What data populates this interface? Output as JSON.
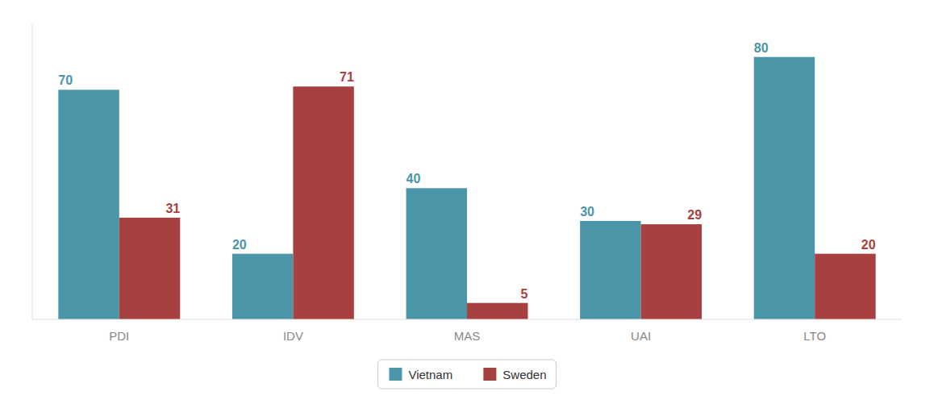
{
  "chart_data": {
    "type": "bar",
    "categories": [
      "PDI",
      "IDV",
      "MAS",
      "UAI",
      "LTO"
    ],
    "series": [
      {
        "name": "Vietnam",
        "color": "#4a96a8",
        "values": [
          70,
          20,
          40,
          30,
          80
        ]
      },
      {
        "name": "Sweden",
        "color": "#a84040",
        "values": [
          31,
          71,
          5,
          29,
          20
        ]
      }
    ],
    "ylim": [
      0,
      90
    ],
    "data_labels": true,
    "tick_labels": "x",
    "grid": false,
    "legend": "bottom"
  }
}
